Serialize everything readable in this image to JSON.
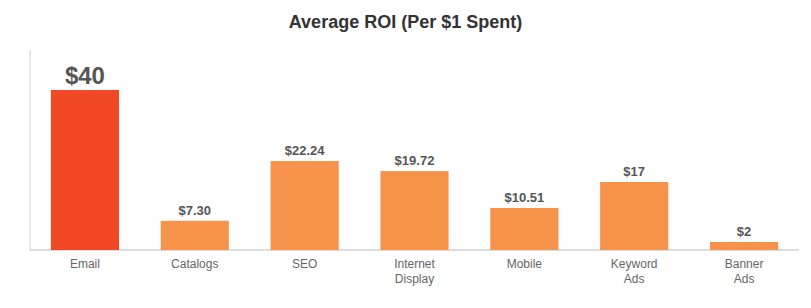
{
  "chart_data": {
    "type": "bar",
    "title": "Average ROI (Per $1 Spent)",
    "categories": [
      "Email",
      "Catalogs",
      "SEO",
      "Internet\nDisplay",
      "Mobile",
      "Keyword\nAds",
      "Banner\nAds"
    ],
    "values": [
      40,
      7.3,
      22.24,
      19.72,
      10.51,
      17,
      2
    ],
    "value_labels": [
      "$40",
      "$7.30",
      "$22.24",
      "$19.72",
      "$10.51",
      "$17",
      "$2"
    ],
    "colors": [
      "#f04923",
      "#f7924a",
      "#f7924a",
      "#f7924a",
      "#f7924a",
      "#f7924a",
      "#f7924a"
    ],
    "ylim": [
      0,
      50
    ],
    "data_labels": true,
    "grid": false,
    "tick_labels": "x"
  }
}
